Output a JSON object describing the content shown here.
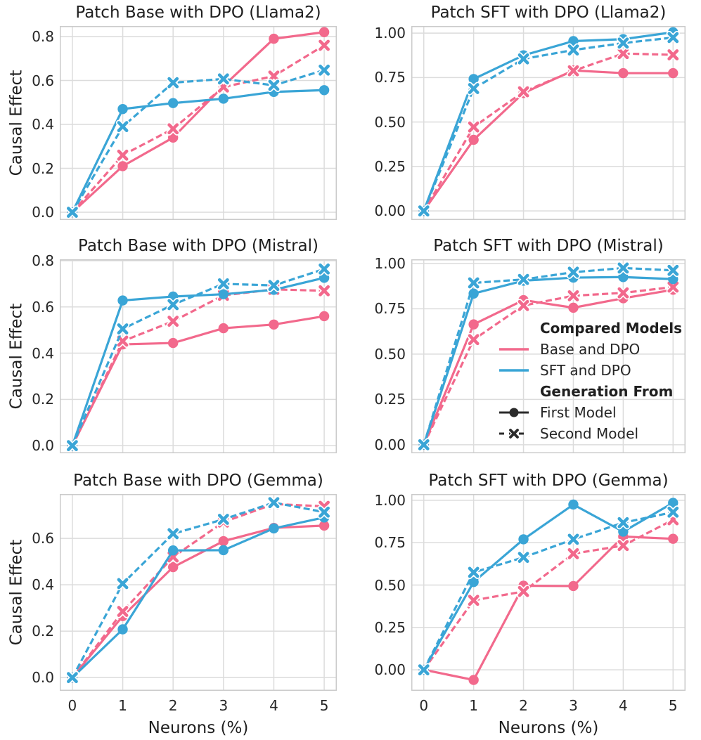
{
  "figure": {
    "x_axis_label": "Neurons (%)",
    "y_axis_label": "Causal Effect",
    "x_tick_labels": [
      "0",
      "1",
      "2",
      "3",
      "4",
      "5"
    ]
  },
  "colors": {
    "base_and_dpo": "#F2698C",
    "sft_and_dpo": "#3AA5D6",
    "generation_swatch": "#2B2B2B",
    "grid": "#DCDCDC",
    "spine": "#CBCBCB",
    "title_text": "#1F1F1F",
    "tick_text": "#262626",
    "background": "#FFFFFF"
  },
  "legend": {
    "compared_models_header": "Compared Models",
    "base_and_dpo_label": "Base and DPO",
    "sft_and_dpo_label": "SFT and DPO",
    "generation_from_header": "Generation From",
    "first_model_label": "First Model",
    "second_model_label": "Second Model"
  },
  "chart_data": [
    {
      "type": "line",
      "title": "Patch Base with DPO (Llama2)",
      "xlabel": "",
      "ylabel": "Causal Effect",
      "x": [
        0,
        1,
        2,
        3,
        4,
        5
      ],
      "xlim": [
        -0.25,
        5.25
      ],
      "ylim": [
        -0.035,
        0.848
      ],
      "y_ticks": [
        0.0,
        0.2,
        0.4,
        0.6,
        0.8
      ],
      "y_tick_labels": [
        "0.0",
        "0.2",
        "0.4",
        "0.6",
        "0.8"
      ],
      "x_tick_labels": [],
      "grid": true,
      "legend": false,
      "series": [
        {
          "name": "Base and DPO - First Model",
          "color": "base_and_dpo",
          "line": "solid",
          "marker": "circle",
          "values": [
            0.0,
            0.21,
            0.34,
            0.575,
            0.79,
            0.82
          ]
        },
        {
          "name": "Base and DPO - Second Model",
          "color": "base_and_dpo",
          "line": "dashed",
          "marker": "x",
          "values": [
            0.0,
            0.26,
            0.38,
            0.57,
            0.62,
            0.76
          ]
        },
        {
          "name": "SFT and DPO - First Model",
          "color": "sft_and_dpo",
          "line": "solid",
          "marker": "circle",
          "values": [
            0.0,
            0.47,
            0.497,
            0.517,
            0.548,
            0.556
          ]
        },
        {
          "name": "SFT and DPO - Second Model",
          "color": "sft_and_dpo",
          "line": "dashed",
          "marker": "x",
          "values": [
            0.0,
            0.39,
            0.59,
            0.607,
            0.578,
            0.647
          ]
        }
      ]
    },
    {
      "type": "line",
      "title": "Patch SFT with DPO (Llama2)",
      "xlabel": "",
      "ylabel": "",
      "x": [
        0,
        1,
        2,
        3,
        4,
        5
      ],
      "xlim": [
        -0.25,
        5.25
      ],
      "ylim": [
        -0.051,
        1.04
      ],
      "y_ticks": [
        0.0,
        0.25,
        0.5,
        0.75,
        1.0
      ],
      "y_tick_labels": [
        "0.00",
        "0.25",
        "0.50",
        "0.75",
        "1.00"
      ],
      "x_tick_labels": [],
      "grid": true,
      "legend": false,
      "series": [
        {
          "name": "Base and DPO - First Model",
          "color": "base_and_dpo",
          "line": "solid",
          "marker": "circle",
          "values": [
            0.0,
            0.4,
            0.663,
            0.79,
            0.775,
            0.775
          ]
        },
        {
          "name": "Base and DPO - Second Model",
          "color": "base_and_dpo",
          "line": "dashed",
          "marker": "x",
          "values": [
            0.0,
            0.472,
            0.67,
            0.788,
            0.885,
            0.878
          ]
        },
        {
          "name": "SFT and DPO - First Model",
          "color": "sft_and_dpo",
          "line": "solid",
          "marker": "circle",
          "values": [
            0.0,
            0.742,
            0.875,
            0.955,
            0.966,
            1.005
          ]
        },
        {
          "name": "SFT and DPO - Second Model",
          "color": "sft_and_dpo",
          "line": "dashed",
          "marker": "x",
          "values": [
            0.0,
            0.688,
            0.855,
            0.905,
            0.944,
            0.975
          ]
        }
      ]
    },
    {
      "type": "line",
      "title": "Patch Base with DPO (Mistral)",
      "xlabel": "",
      "ylabel": "Causal Effect",
      "x": [
        0,
        1,
        2,
        3,
        4,
        5
      ],
      "xlim": [
        -0.25,
        5.25
      ],
      "ylim": [
        -0.033,
        0.806
      ],
      "y_ticks": [
        0.0,
        0.2,
        0.4,
        0.6,
        0.8
      ],
      "y_tick_labels": [
        "0.0",
        "0.2",
        "0.4",
        "0.6",
        "0.8"
      ],
      "x_tick_labels": [],
      "grid": true,
      "legend": false,
      "series": [
        {
          "name": "Base and DPO - First Model",
          "color": "base_and_dpo",
          "line": "solid",
          "marker": "circle",
          "values": [
            0.0,
            0.438,
            0.444,
            0.508,
            0.524,
            0.56
          ]
        },
        {
          "name": "Base and DPO - Second Model",
          "color": "base_and_dpo",
          "line": "dashed",
          "marker": "x",
          "values": [
            0.0,
            0.452,
            0.538,
            0.65,
            0.676,
            0.67
          ]
        },
        {
          "name": "SFT and DPO - First Model",
          "color": "sft_and_dpo",
          "line": "solid",
          "marker": "circle",
          "values": [
            0.0,
            0.628,
            0.645,
            0.655,
            0.674,
            0.726
          ]
        },
        {
          "name": "SFT and DPO - Second Model",
          "color": "sft_and_dpo",
          "line": "dashed",
          "marker": "x",
          "values": [
            0.0,
            0.505,
            0.61,
            0.7,
            0.693,
            0.764
          ]
        }
      ]
    },
    {
      "type": "line",
      "title": "Patch SFT with DPO (Mistral)",
      "xlabel": "",
      "ylabel": "",
      "x": [
        0,
        1,
        2,
        3,
        4,
        5
      ],
      "xlim": [
        -0.25,
        5.25
      ],
      "ylim": [
        -0.047,
        1.023
      ],
      "y_ticks": [
        0.0,
        0.25,
        0.5,
        0.75,
        1.0
      ],
      "y_tick_labels": [
        "0.00",
        "0.25",
        "0.50",
        "0.75",
        "1.00"
      ],
      "x_tick_labels": [],
      "grid": true,
      "legend": true,
      "series": [
        {
          "name": "Base and DPO - First Model",
          "color": "base_and_dpo",
          "line": "solid",
          "marker": "circle",
          "values": [
            0.0,
            0.664,
            0.798,
            0.756,
            0.808,
            0.855
          ]
        },
        {
          "name": "Base and DPO - Second Model",
          "color": "base_and_dpo",
          "line": "dashed",
          "marker": "x",
          "values": [
            0.0,
            0.58,
            0.768,
            0.822,
            0.838,
            0.87
          ]
        },
        {
          "name": "SFT and DPO - First Model",
          "color": "sft_and_dpo",
          "line": "solid",
          "marker": "circle",
          "values": [
            0.0,
            0.834,
            0.905,
            0.922,
            0.925,
            0.914
          ]
        },
        {
          "name": "SFT and DPO - Second Model",
          "color": "sft_and_dpo",
          "line": "dashed",
          "marker": "x",
          "values": [
            0.0,
            0.893,
            0.912,
            0.952,
            0.975,
            0.962
          ]
        }
      ]
    },
    {
      "type": "line",
      "title": "Patch Base with DPO (Gemma)",
      "xlabel": "Neurons (%)",
      "ylabel": "Causal Effect",
      "x": [
        0,
        1,
        2,
        3,
        4,
        5
      ],
      "xlim": [
        -0.25,
        5.25
      ],
      "ylim": [
        -0.057,
        0.791
      ],
      "y_ticks": [
        0.0,
        0.2,
        0.4,
        0.6
      ],
      "y_tick_labels": [
        "0.0",
        "0.2",
        "0.4",
        "0.6"
      ],
      "x_tick_labels": [
        "0",
        "1",
        "2",
        "3",
        "4",
        "5"
      ],
      "grid": true,
      "legend": false,
      "series": [
        {
          "name": "Base and DPO - First Model",
          "color": "base_and_dpo",
          "line": "solid",
          "marker": "circle",
          "values": [
            0.0,
            0.265,
            0.476,
            0.588,
            0.645,
            0.655
          ]
        },
        {
          "name": "Base and DPO - Second Model",
          "color": "base_and_dpo",
          "line": "dashed",
          "marker": "x",
          "values": [
            0.0,
            0.285,
            0.52,
            0.67,
            0.748,
            0.738
          ]
        },
        {
          "name": "SFT and DPO - First Model",
          "color": "sft_and_dpo",
          "line": "solid",
          "marker": "circle",
          "values": [
            0.0,
            0.208,
            0.548,
            0.549,
            0.643,
            0.69
          ]
        },
        {
          "name": "SFT and DPO - Second Model",
          "color": "sft_and_dpo",
          "line": "dashed",
          "marker": "x",
          "values": [
            0.0,
            0.405,
            0.62,
            0.682,
            0.754,
            0.713
          ]
        }
      ]
    },
    {
      "type": "line",
      "title": "Patch SFT with DPO (Gemma)",
      "xlabel": "Neurons (%)",
      "ylabel": "",
      "x": [
        0,
        1,
        2,
        3,
        4,
        5
      ],
      "xlim": [
        -0.25,
        5.25
      ],
      "ylim": [
        -0.124,
        1.037
      ],
      "y_ticks": [
        0.0,
        0.25,
        0.5,
        0.75,
        1.0
      ],
      "y_tick_labels": [
        "0.00",
        "0.25",
        "0.50",
        "0.75",
        "1.00"
      ],
      "x_tick_labels": [
        "0",
        "1",
        "2",
        "3",
        "4",
        "5"
      ],
      "grid": true,
      "legend": false,
      "series": [
        {
          "name": "Base and DPO - First Model",
          "color": "base_and_dpo",
          "line": "solid",
          "marker": "circle",
          "values": [
            0.0,
            -0.06,
            0.496,
            0.494,
            0.786,
            0.773
          ]
        },
        {
          "name": "Base and DPO - Second Model",
          "color": "base_and_dpo",
          "line": "dashed",
          "marker": "x",
          "values": [
            0.0,
            0.41,
            0.462,
            0.685,
            0.733,
            0.885
          ]
        },
        {
          "name": "SFT and DPO - First Model",
          "color": "sft_and_dpo",
          "line": "solid",
          "marker": "circle",
          "values": [
            0.0,
            0.518,
            0.77,
            0.975,
            0.815,
            0.985
          ]
        },
        {
          "name": "SFT and DPO - Second Model",
          "color": "sft_and_dpo",
          "line": "dashed",
          "marker": "x",
          "values": [
            0.0,
            0.575,
            0.663,
            0.77,
            0.868,
            0.93
          ]
        }
      ]
    }
  ]
}
